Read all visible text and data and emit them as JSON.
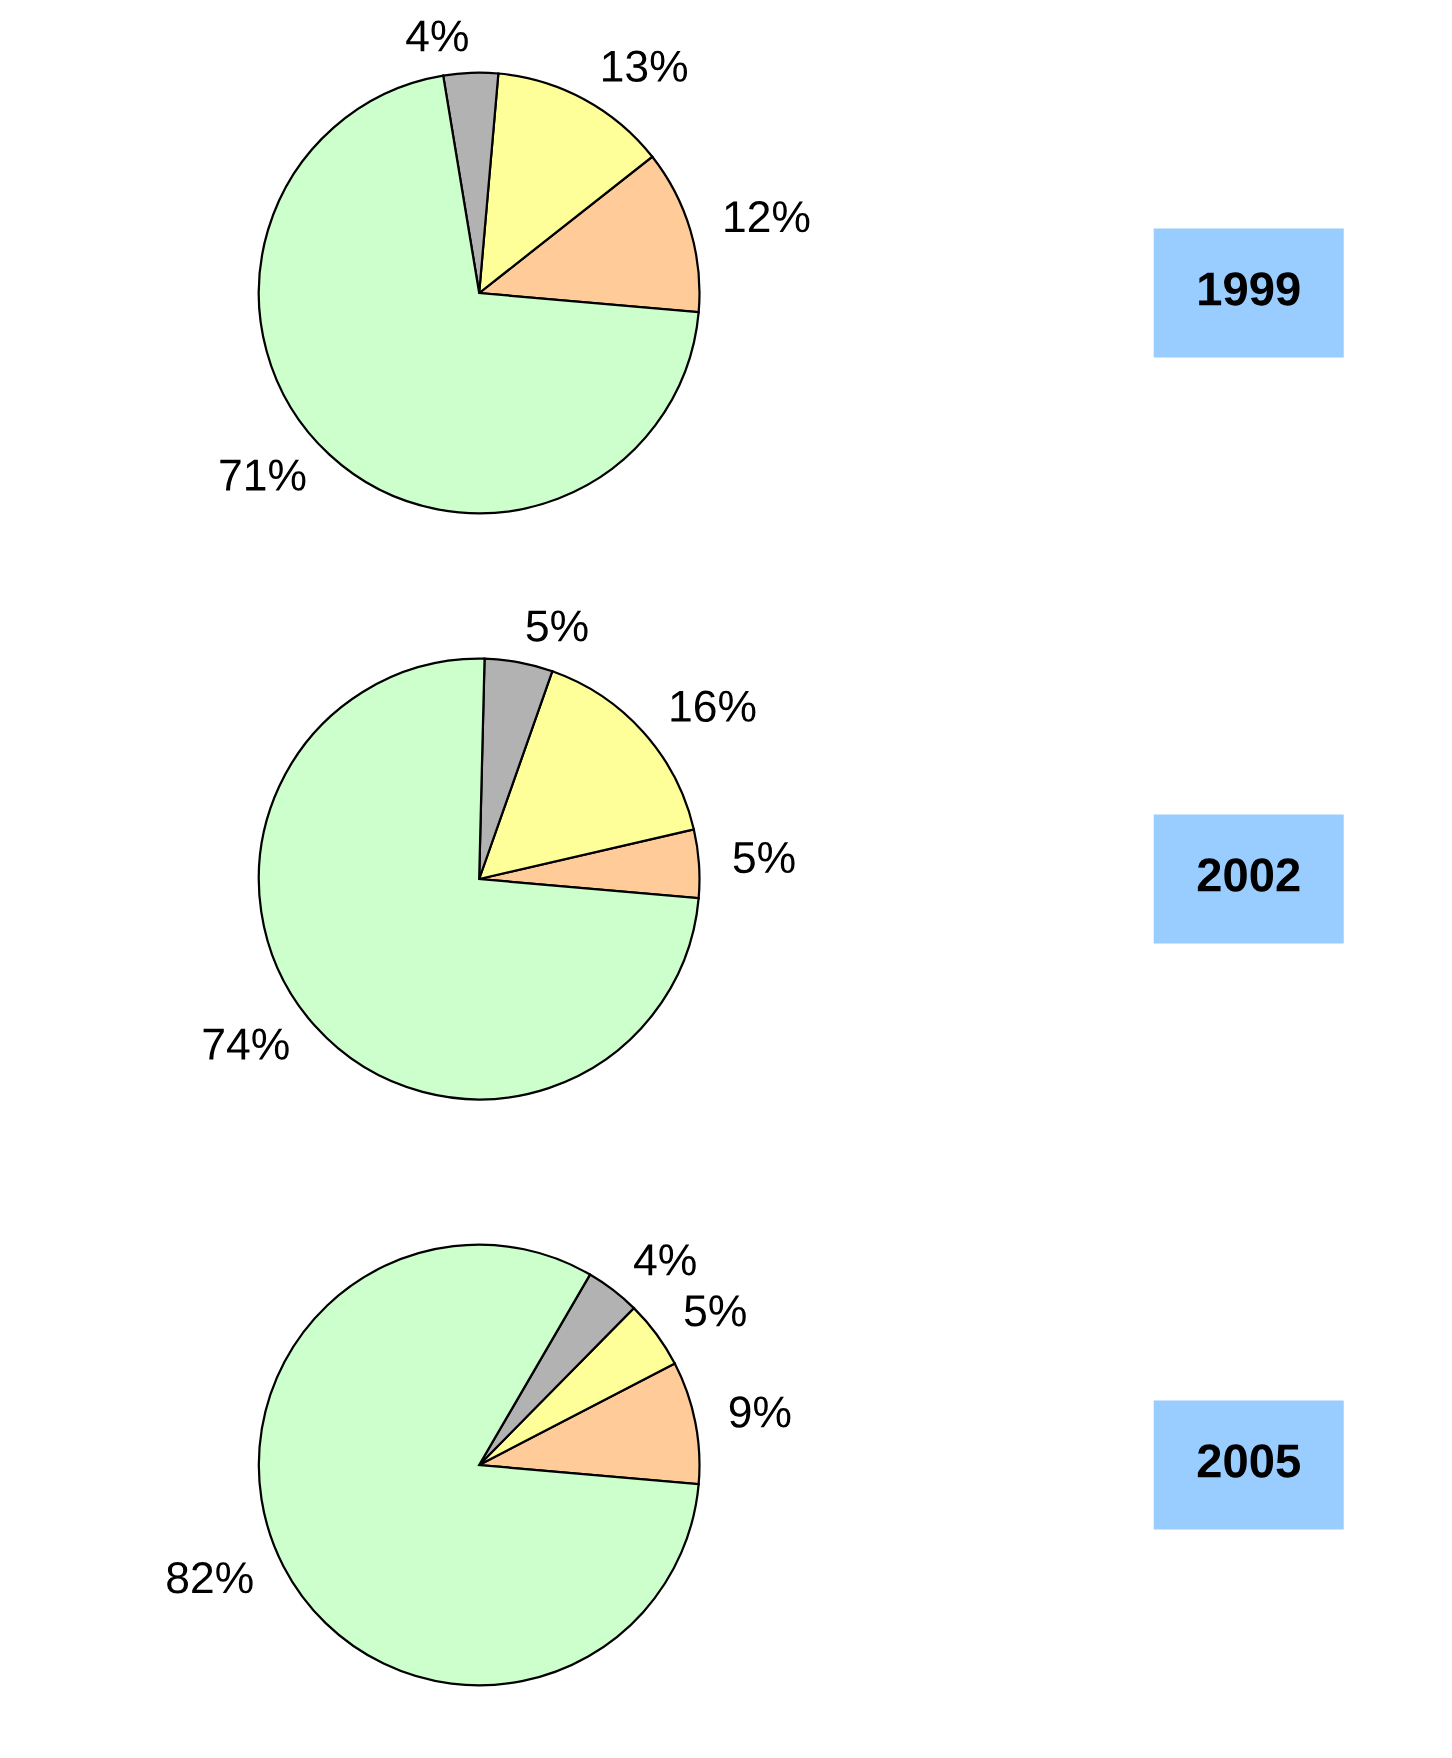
{
  "chart_data": [
    {
      "type": "pie",
      "title": "1999",
      "categories": [
        null,
        null,
        null,
        null
      ],
      "values": [
        12,
        13,
        4,
        71
      ],
      "colors": [
        "#ffcc99",
        "#ffff99",
        "#b2b2b2",
        "#ccffcc"
      ],
      "value_labels": [
        "12%",
        "13%",
        "4%",
        "71%"
      ]
    },
    {
      "type": "pie",
      "title": "2002",
      "categories": [
        null,
        null,
        null,
        null
      ],
      "values": [
        5,
        16,
        5,
        74
      ],
      "colors": [
        "#ffcc99",
        "#ffff99",
        "#b2b2b2",
        "#ccffcc"
      ],
      "value_labels": [
        "5%",
        "16%",
        "5%",
        "74%"
      ]
    },
    {
      "type": "pie",
      "title": "2005",
      "categories": [
        null,
        null,
        null,
        null
      ],
      "values": [
        9,
        5,
        4,
        82
      ],
      "colors": [
        "#ffcc99",
        "#ffff99",
        "#b2b2b2",
        "#ccffcc"
      ],
      "value_labels": [
        "9%",
        "5%",
        "4%",
        "82%"
      ]
    }
  ]
}
